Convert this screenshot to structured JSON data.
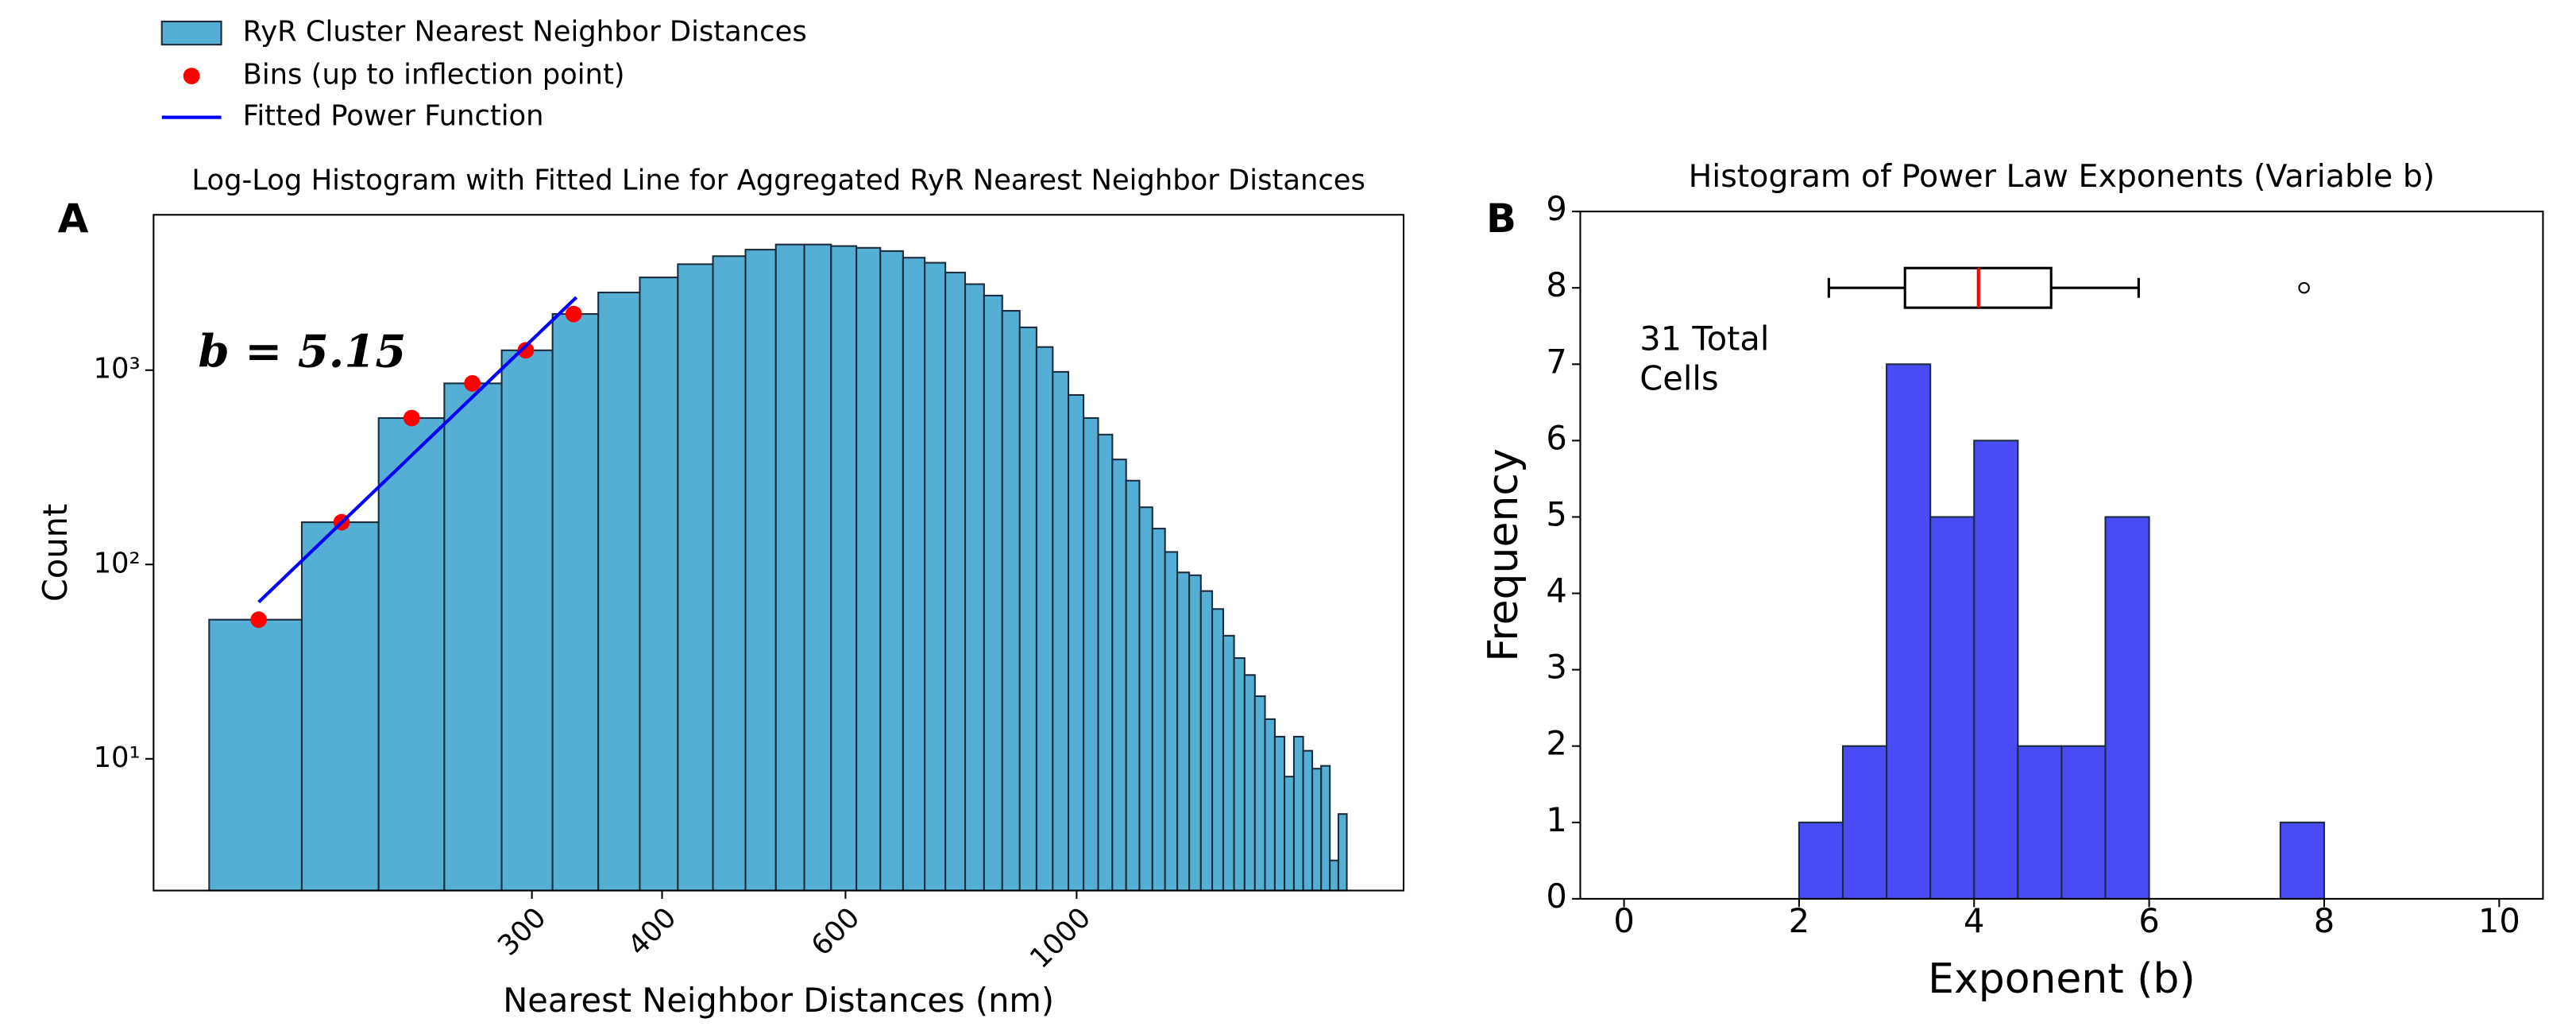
{
  "chart_data": [
    {
      "type": "histogram",
      "panel": "A",
      "title": "Log-Log Histogram with Fitted Line for Aggregated RyR Nearest Neighbor Distances",
      "xlabel": "Nearest Neighbor Distances (nm)",
      "ylabel": "Count",
      "log_x": true,
      "log_y": true,
      "legend": "upper left",
      "name": "RyR Cluster Nearest Neighbor Distances",
      "color": "#55aed4",
      "bins": [
        147,
        180.4,
        213.8,
        247.2,
        280.6,
        314,
        347.4,
        380.8,
        414.2,
        447.6,
        481,
        514.4,
        547.8,
        581.2,
        614.6,
        648,
        681.4,
        714.8,
        748.2,
        781.6,
        815,
        848.4,
        881.8,
        915.2,
        948.6,
        982,
        1015.4,
        1048.8,
        1082.2,
        1115.6,
        1149,
        1182.4,
        1215.8,
        1249.2,
        1282.6,
        1316,
        1349.4,
        1382.8,
        1416.2,
        1449.6,
        1483,
        1516.4,
        1549.8,
        1583.2,
        1616.6,
        1650,
        1683.4,
        1716.8,
        1750.2,
        1783.6,
        1817
      ],
      "counts": [
        52,
        165,
        567,
        855,
        1265,
        1945,
        2510,
        3000,
        3510,
        3860,
        4170,
        4430,
        4430,
        4350,
        4260,
        4100,
        3790,
        3570,
        3180,
        2770,
        2420,
        2020,
        1660,
        1315,
        980,
        745,
        567,
        466,
        347,
        270,
        197,
        153,
        116,
        91,
        88,
        73,
        59,
        43,
        33,
        27,
        21,
        16,
        13,
        8.1,
        13,
        11,
        8.9,
        9.2,
        3,
        5.2
      ],
      "xlim": [
        130,
        2060
      ],
      "ylim": [
        2.1,
        6300
      ],
      "xticks": [
        300,
        400,
        600,
        1000
      ],
      "yticks": [
        {
          "value": 10,
          "label": "10¹"
        },
        {
          "value": 100,
          "label": "10²"
        },
        {
          "value": 1000,
          "label": "10³"
        }
      ],
      "series": [
        {
          "name": "Bins (up to inflection point)",
          "type": "scatter",
          "color": "#ff0000",
          "x": [
            164,
            197,
            230,
            263,
            296,
            329
          ],
          "values": [
            52,
            165,
            567,
            855,
            1265,
            1945
          ]
        },
        {
          "name": "Fitted Power Function",
          "type": "line",
          "color": "#0000ff",
          "x": [
            164,
            331
          ],
          "values": [
            64,
            2370
          ]
        }
      ],
      "annotation": "b = 5.15"
    },
    {
      "type": "histogram",
      "panel": "B",
      "title": "Histogram of Power Law Exponents (Variable b)",
      "xlabel": "Exponent (b)",
      "ylabel": "Frequency",
      "color": "#4b4bf7",
      "bins": [
        0,
        0.5,
        1,
        1.5,
        2,
        2.5,
        3,
        3.5,
        4,
        4.5,
        5,
        5.5,
        6,
        6.5,
        7,
        7.5,
        8,
        8.5,
        9,
        9.5,
        10
      ],
      "counts": [
        0,
        0,
        0,
        0,
        1,
        2,
        7,
        5,
        6,
        2,
        2,
        5,
        0,
        0,
        0,
        1,
        0,
        0,
        0,
        0
      ],
      "xlim": [
        -0.5,
        10.5
      ],
      "ylim": [
        0,
        9
      ],
      "xticks": [
        0,
        2,
        4,
        6,
        8,
        10
      ],
      "yticks": [
        0,
        1,
        2,
        3,
        4,
        5,
        6,
        7,
        8,
        9
      ],
      "boxplot": {
        "y": 8,
        "whislo": 2.34,
        "q1": 3.21,
        "med": 4.05,
        "q3": 4.88,
        "whishi": 5.88,
        "fliers": [
          7.77
        ],
        "median_color": "#ff0000"
      },
      "annotation_lines": [
        "31 Total",
        "Cells"
      ]
    }
  ]
}
